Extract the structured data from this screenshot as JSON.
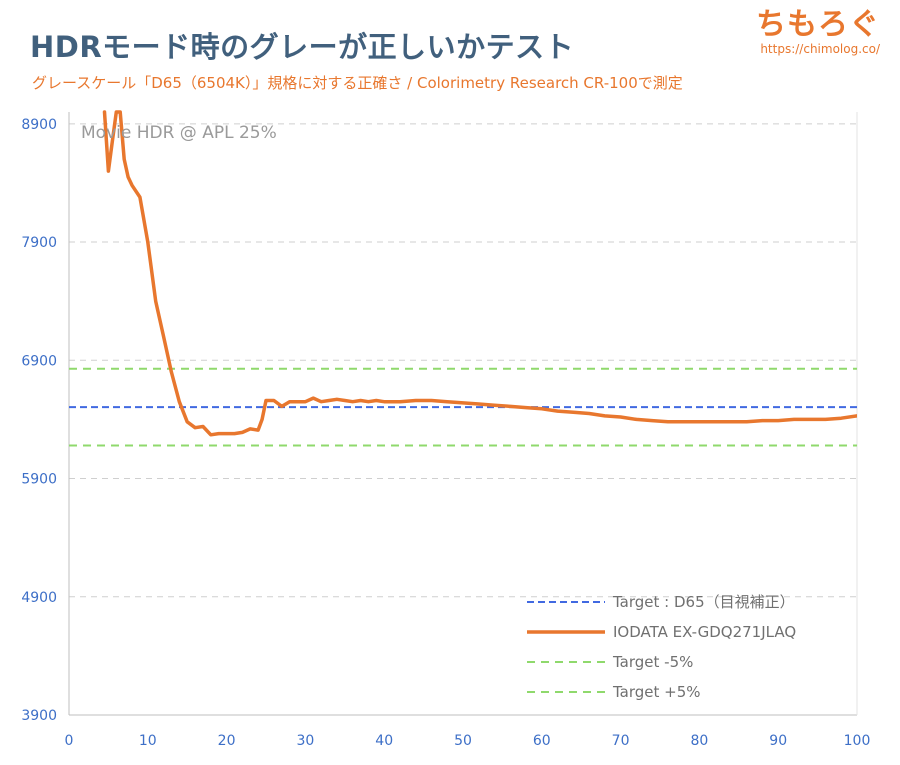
{
  "header": {
    "title": "HDRモード時のグレーが正しいかテスト",
    "subtitle": "グレースケール「D65（6504K）」規格に対する正確さ  / Colorimetry Research CR-100で測定"
  },
  "brand": {
    "name": "ちもろぐ",
    "url": "https://chimolog.co/"
  },
  "chart_data": {
    "type": "line",
    "annotation": "Movie HDR @ APL 25%",
    "xlim": [
      0,
      100
    ],
    "ylim": [
      3900,
      9000
    ],
    "xticks": [
      0,
      10,
      20,
      30,
      40,
      50,
      60,
      70,
      80,
      90,
      100
    ],
    "yticks": [
      3900,
      4900,
      5900,
      6900,
      7900,
      8900
    ],
    "grid": true,
    "legend_position": "bottom-right",
    "series": [
      {
        "name": "Target : D65（目視補正）",
        "style": "dashed",
        "color": "#4169e1",
        "x": [
          0,
          100
        ],
        "y": [
          6504,
          6504
        ]
      },
      {
        "name": "IODATA EX-GDQ271JLAQ",
        "style": "solid",
        "color": "#e8772e",
        "x": [
          4.5,
          5,
          5.5,
          6,
          6.5,
          7,
          7.5,
          8,
          9,
          10,
          11,
          12,
          13,
          14,
          15,
          16,
          17,
          18,
          19,
          20,
          21,
          22,
          23,
          24,
          24.5,
          25,
          26,
          27,
          28,
          29,
          30,
          31,
          32,
          33,
          34,
          35,
          36,
          37,
          38,
          39,
          40,
          42,
          44,
          46,
          48,
          50,
          52,
          54,
          56,
          58,
          60,
          62,
          64,
          66,
          68,
          70,
          72,
          74,
          76,
          78,
          80,
          82,
          84,
          86,
          88,
          90,
          92,
          94,
          96,
          98,
          100
        ],
        "y": [
          9000,
          8500,
          8750,
          9000,
          9000,
          8600,
          8450,
          8380,
          8280,
          7900,
          7400,
          7100,
          6800,
          6550,
          6380,
          6330,
          6340,
          6270,
          6280,
          6280,
          6280,
          6290,
          6320,
          6310,
          6400,
          6560,
          6560,
          6510,
          6550,
          6550,
          6550,
          6580,
          6550,
          6560,
          6570,
          6560,
          6550,
          6560,
          6550,
          6560,
          6550,
          6550,
          6560,
          6560,
          6550,
          6540,
          6530,
          6520,
          6510,
          6500,
          6490,
          6470,
          6460,
          6450,
          6430,
          6420,
          6400,
          6390,
          6380,
          6380,
          6380,
          6380,
          6380,
          6380,
          6390,
          6390,
          6400,
          6400,
          6400,
          6410,
          6430
        ]
      },
      {
        "name": "Target -5%",
        "style": "dashed",
        "color": "#8fd96c",
        "x": [
          0,
          100
        ],
        "y": [
          6179,
          6179
        ]
      },
      {
        "name": "Target +5%",
        "style": "dashed",
        "color": "#8fd96c",
        "x": [
          0,
          100
        ],
        "y": [
          6829,
          6829
        ]
      }
    ]
  }
}
